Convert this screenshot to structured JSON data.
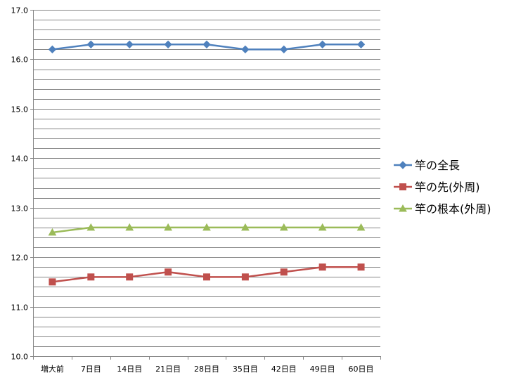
{
  "chart_data": {
    "type": "line",
    "title": "",
    "xlabel": "",
    "ylabel": "",
    "categories": [
      "増大前",
      "7日目",
      "14日目",
      "21日目",
      "28日目",
      "35日目",
      "42日目",
      "49日目",
      "60日目"
    ],
    "ylim": [
      10.0,
      17.0
    ],
    "y_ticks": [
      "10.0",
      "11.0",
      "12.0",
      "13.0",
      "14.0",
      "15.0",
      "16.0",
      "17.0"
    ],
    "y_tick_values": [
      10,
      11,
      12,
      13,
      14,
      15,
      16,
      17
    ],
    "minor_gridline_step": 0.2,
    "grid": true,
    "legend_position": "right",
    "series": [
      {
        "name": "竿の全長",
        "color": "#4f81bd",
        "marker": "diamond",
        "values": [
          16.2,
          16.3,
          16.3,
          16.3,
          16.3,
          16.2,
          16.2,
          16.3,
          16.3
        ]
      },
      {
        "name": "竿の先(外周)",
        "color": "#c0504d",
        "marker": "square",
        "values": [
          11.5,
          11.6,
          11.6,
          11.7,
          11.6,
          11.6,
          11.7,
          11.8,
          11.8
        ]
      },
      {
        "name": "竿の根本(外周)",
        "color": "#9bbb59",
        "marker": "triangle",
        "values": [
          12.5,
          12.6,
          12.6,
          12.6,
          12.6,
          12.6,
          12.6,
          12.6,
          12.6
        ]
      }
    ]
  }
}
